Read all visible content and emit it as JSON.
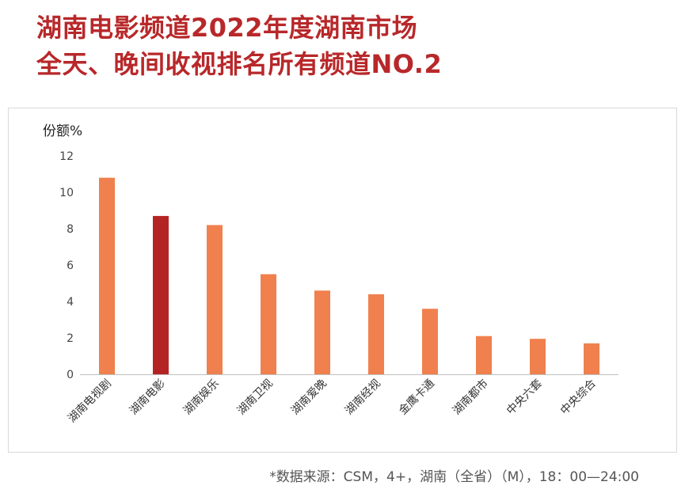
{
  "title": {
    "line1": "湖南电影频道2022年度湖南市场",
    "line2": "全天、晚间收视排名所有频道NO.2"
  },
  "source_note": "*数据来源：CSM，4+，湖南（全省）（M），18：00—24:00",
  "colors": {
    "title": "#b8282a",
    "bar": "#f0804e",
    "highlight_bar": "#b52424",
    "axis": "#bfbfbf"
  },
  "chart_data": {
    "type": "bar",
    "ylabel": "份额%",
    "xlabel": "",
    "ylim": [
      0,
      12
    ],
    "yticks": [
      0,
      2,
      4,
      6,
      8,
      10,
      12
    ],
    "grid": false,
    "categories": [
      "湖南电视剧",
      "湖南电影",
      "湖南娱乐",
      "湖南卫视",
      "湖南爱晚",
      "湖南经视",
      "金鹰卡通",
      "湖南都市",
      "中央六套",
      "中央综合"
    ],
    "values": [
      10.8,
      8.7,
      8.2,
      5.5,
      4.6,
      4.4,
      3.6,
      2.1,
      1.95,
      1.7
    ],
    "highlight_category": "湖南电影"
  }
}
